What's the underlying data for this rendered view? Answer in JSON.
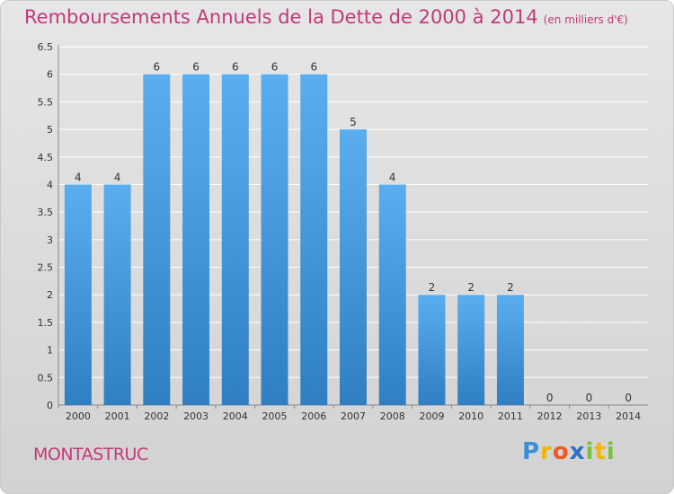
{
  "header": {
    "title": "Remboursements Annuels de la Dette de 2000 à 2014",
    "subtitle": "(en milliers d'€)"
  },
  "footer": {
    "commune": "MONTASTRUC",
    "brand": [
      "P",
      "r",
      "o",
      "x",
      "i",
      "t",
      "i"
    ]
  },
  "colors": {
    "bar_top": "#5aaef0",
    "bar_bottom": "#2f7fc2",
    "title": "#c4387a",
    "grid": "#ffffff"
  },
  "chart_data": {
    "type": "bar",
    "categories": [
      "2000",
      "2001",
      "2002",
      "2003",
      "2004",
      "2005",
      "2006",
      "2007",
      "2008",
      "2009",
      "2010",
      "2011",
      "2012",
      "2013",
      "2014"
    ],
    "values": [
      4,
      4,
      6,
      6,
      6,
      6,
      6,
      5,
      4,
      2,
      2,
      2,
      0,
      0,
      0
    ],
    "data_labels": [
      "4",
      "4",
      "6",
      "6",
      "6",
      "6",
      "6",
      "5",
      "4",
      "2",
      "2",
      "2",
      "0",
      "0",
      "0"
    ],
    "yticks": [
      "0",
      "0.5",
      "1",
      "1.5",
      "2",
      "2.5",
      "3",
      "3.5",
      "4",
      "4.5",
      "5",
      "5.5",
      "6",
      "6.5"
    ],
    "ylim": [
      0,
      6.5
    ],
    "grid": true
  }
}
